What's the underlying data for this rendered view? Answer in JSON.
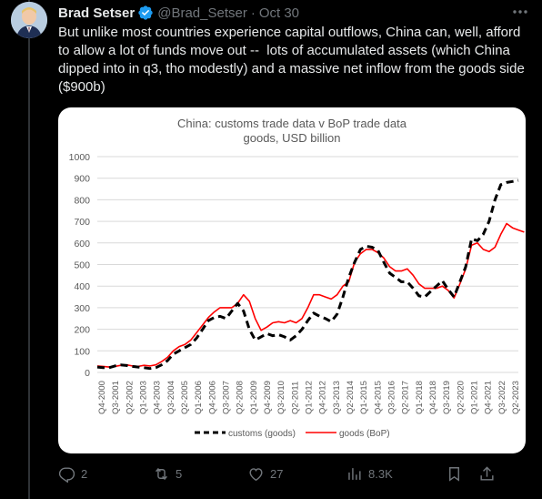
{
  "tweet": {
    "author_name": "Brad Setser",
    "handle": "@Brad_Setser",
    "separator": "·",
    "date": "Oct 30",
    "text": "But unlike most countries experience capital outflows, China can, well, afford to allow a lot of funds move out --  lots of accumulated assets (which China dipped into in q3, tho modestly) and a massive net inflow from the goods side ($900b)"
  },
  "actions": {
    "replies": "2",
    "retweets": "5",
    "likes": "27",
    "views": "8.3K"
  },
  "colors": {
    "background": "#000000",
    "text": "#e7e9ea",
    "muted": "#71767b",
    "verified": "#1d9bf0",
    "customs_line": "#000000",
    "bop_line": "#ff0000"
  },
  "icons": [
    "verified-badge-icon",
    "more-icon",
    "reply-icon",
    "retweet-icon",
    "like-icon",
    "views-icon",
    "bookmark-icon",
    "share-icon"
  ],
  "chart_data": {
    "type": "line",
    "title_line1": "China: customs trade data v BoP trade data",
    "title_line2": "goods, USD billion",
    "ylim": [
      0,
      1000
    ],
    "yticks": [
      "0",
      "100",
      "200",
      "300",
      "400",
      "500",
      "600",
      "700",
      "800",
      "900",
      "1000"
    ],
    "xticks": [
      "Q4-2000",
      "Q3-2001",
      "Q2-2002",
      "Q1-2003",
      "Q4-2003",
      "Q3-2004",
      "Q2-2005",
      "Q1-2006",
      "Q4-2006",
      "Q3-2007",
      "Q2-2008",
      "Q1-2009",
      "Q4-2009",
      "Q3-2010",
      "Q2-2011",
      "Q1-2012",
      "Q4-2012",
      "Q3-2013",
      "Q2-2014",
      "Q1-2015",
      "Q4-2015",
      "Q3-2016",
      "Q2-2017",
      "Q1-2018",
      "Q4-2018",
      "Q3-2019",
      "Q2-2020",
      "Q1-2021",
      "Q4-2021",
      "Q3-2022",
      "Q2-2023"
    ],
    "grid": true,
    "legend_position": "bottom",
    "series": [
      {
        "name": "customs (goods)",
        "style": "dashed",
        "color": "#000000",
        "values": [
          25,
          22,
          22,
          30,
          35,
          32,
          28,
          25,
          22,
          18,
          22,
          35,
          55,
          85,
          100,
          115,
          130,
          160,
          200,
          240,
          255,
          260,
          250,
          285,
          320,
          285,
          200,
          150,
          165,
          180,
          170,
          175,
          165,
          150,
          170,
          200,
          240,
          275,
          260,
          250,
          235,
          270,
          350,
          440,
          510,
          570,
          585,
          580,
          565,
          510,
          460,
          440,
          420,
          420,
          390,
          355,
          350,
          375,
          400,
          425,
          385,
          350,
          420,
          490,
          620,
          610,
          640,
          700,
          800,
          870,
          880,
          885,
          890
        ]
      },
      {
        "name": "goods (BoP)",
        "style": "solid",
        "color": "#ff0000",
        "values": [
          30,
          28,
          25,
          28,
          33,
          35,
          30,
          28,
          33,
          30,
          35,
          50,
          70,
          100,
          120,
          130,
          150,
          185,
          220,
          255,
          280,
          300,
          300,
          300,
          320,
          360,
          330,
          250,
          195,
          210,
          230,
          235,
          230,
          240,
          230,
          250,
          300,
          360,
          360,
          350,
          340,
          360,
          400,
          420,
          510,
          550,
          570,
          570,
          555,
          530,
          490,
          470,
          470,
          480,
          450,
          410,
          390,
          390,
          390,
          400,
          380,
          345,
          410,
          480,
          590,
          600,
          570,
          560,
          580,
          640,
          690,
          670,
          660,
          650
        ]
      }
    ]
  }
}
